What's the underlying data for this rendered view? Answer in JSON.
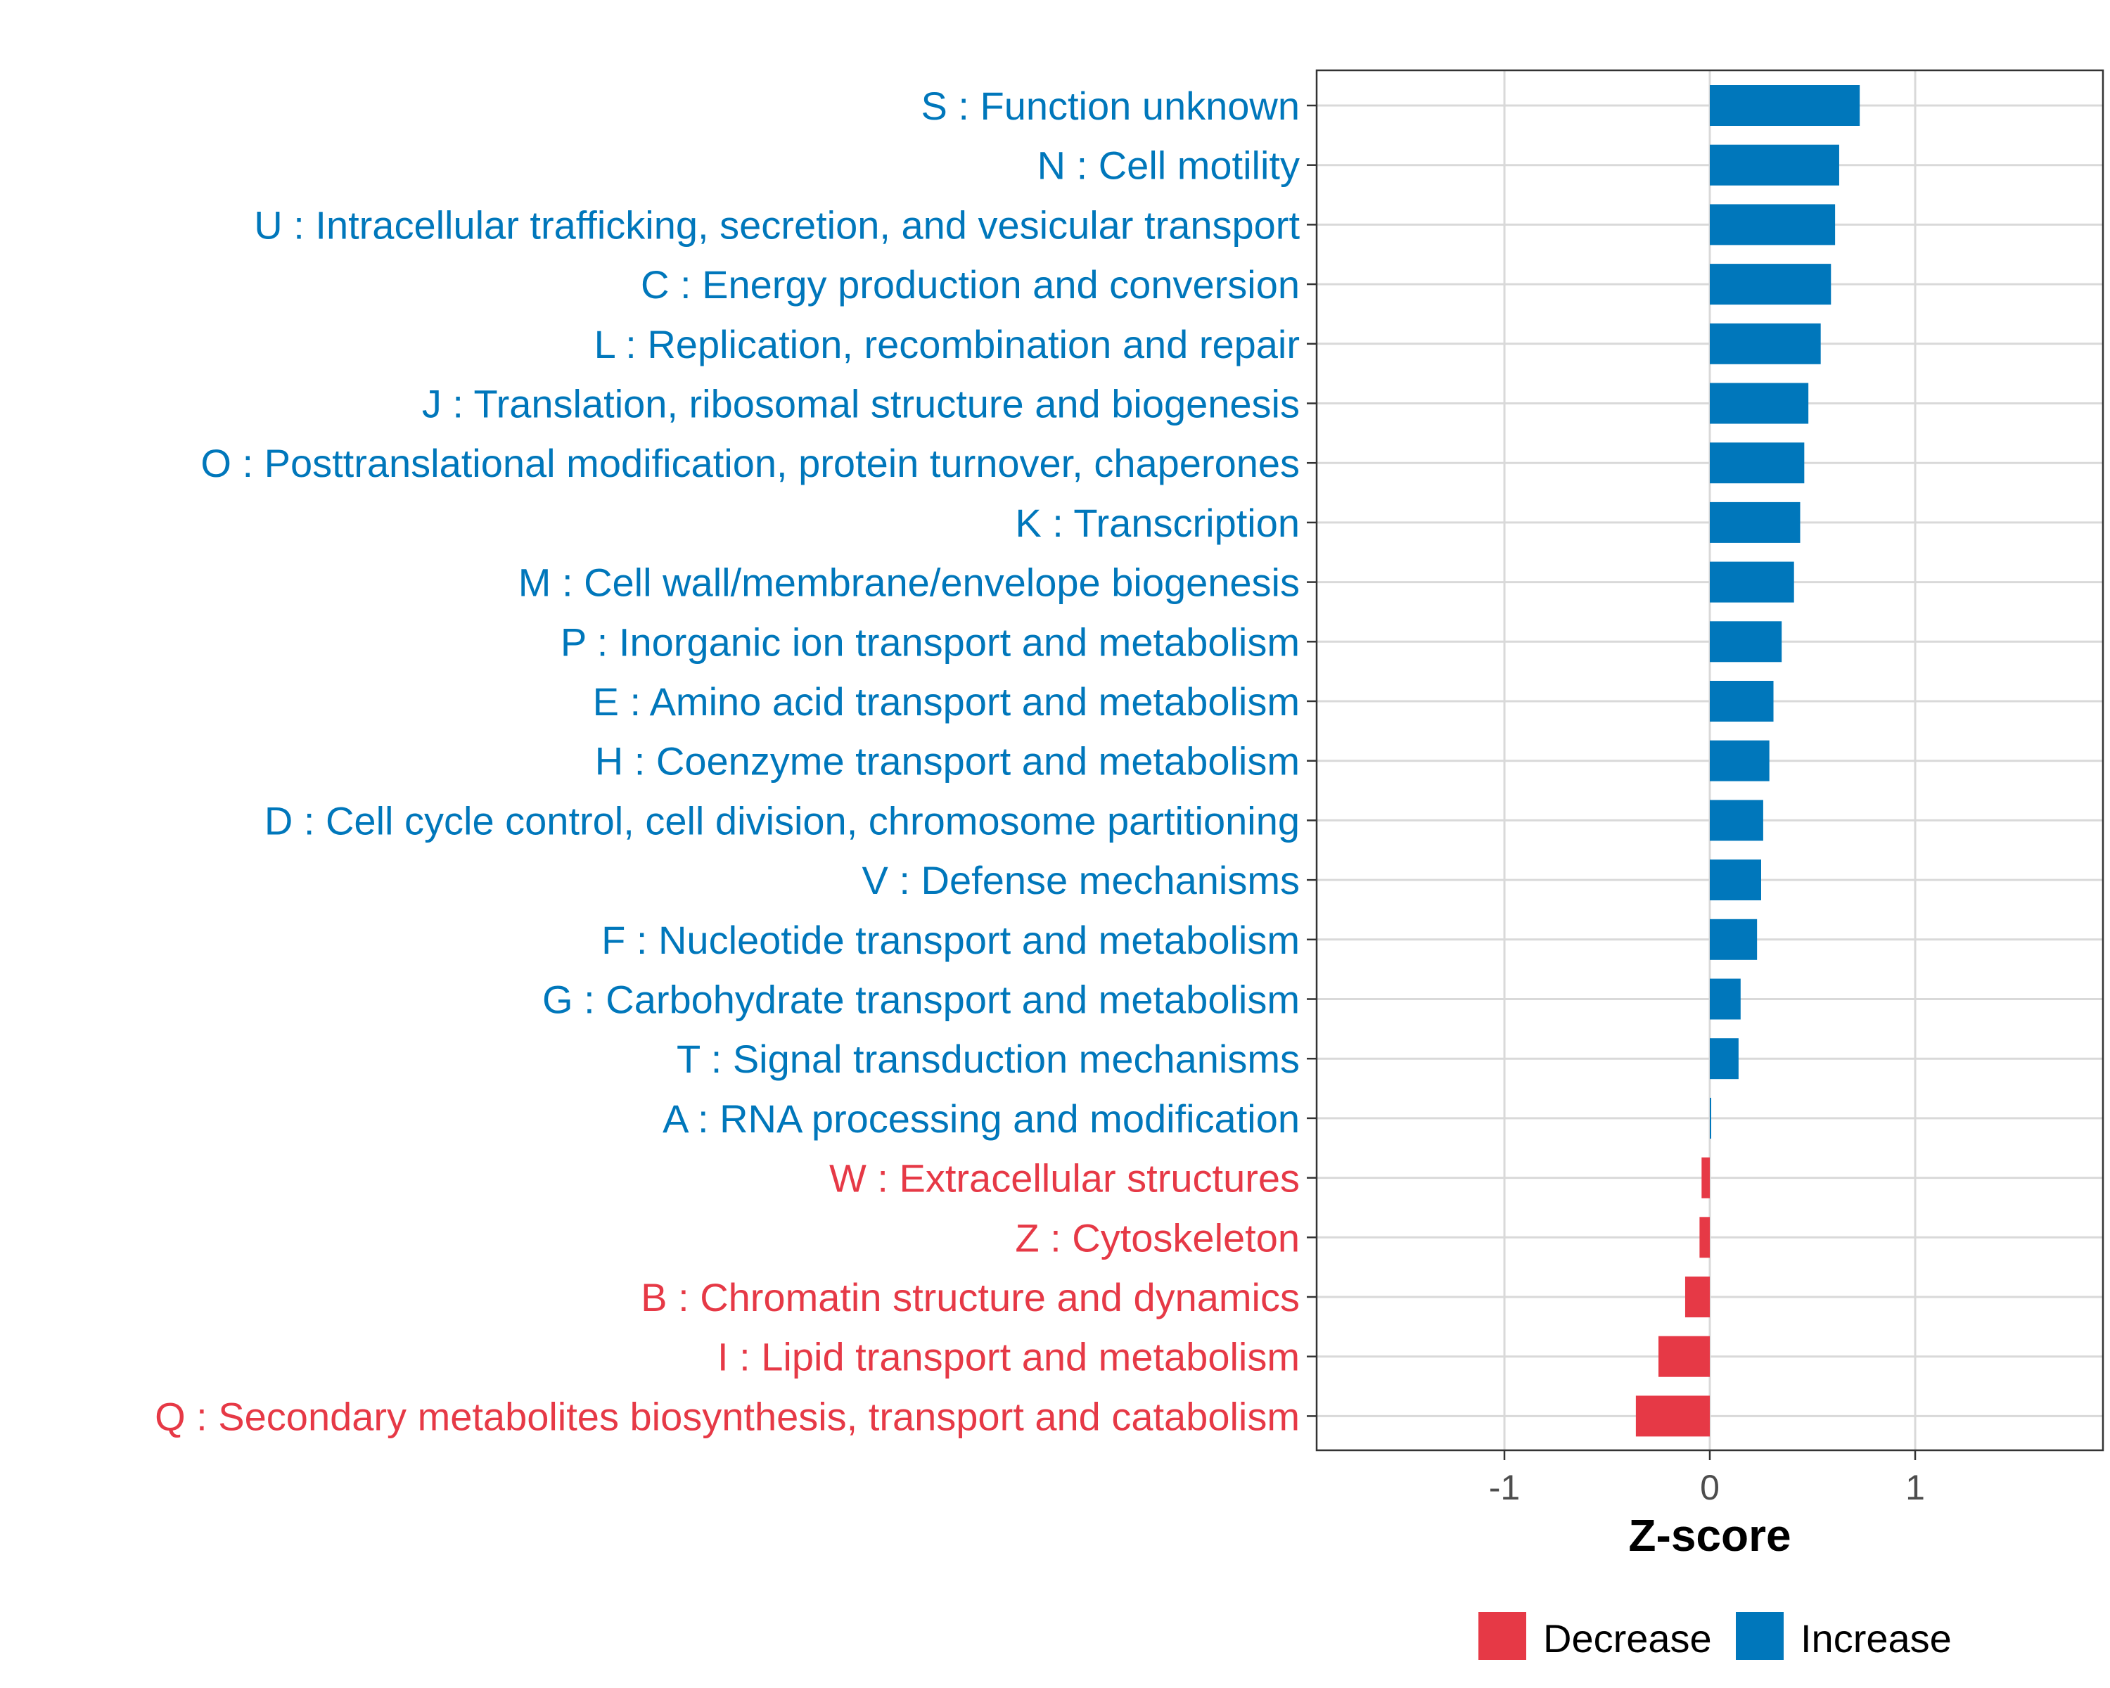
{
  "chart_data": {
    "type": "bar",
    "orientation": "horizontal",
    "xlabel": "Z-score",
    "xlim": [
      -1.9,
      1.9
    ],
    "xticks": [
      -1,
      0,
      1
    ],
    "xtick_labels": [
      "-1",
      "0",
      "1"
    ],
    "grid": true,
    "colors": {
      "Increase": "#0077BB",
      "Decrease": "#E63946"
    },
    "legend": {
      "position": "bottom",
      "entries": [
        "Decrease",
        "Increase"
      ]
    },
    "categories": [
      "S : Function unknown",
      "N : Cell motility",
      "U : Intracellular trafficking, secretion, and vesicular transport",
      "C : Energy production and conversion",
      "L : Replication, recombination and repair",
      "J : Translation, ribosomal structure and biogenesis",
      "O : Posttranslational modification, protein turnover, chaperones",
      "K : Transcription",
      "M : Cell wall/membrane/envelope biogenesis",
      "P : Inorganic ion transport and metabolism",
      "E : Amino acid transport and metabolism",
      "H : Coenzyme transport and metabolism",
      "D : Cell cycle control, cell division, chromosome partitioning",
      "V : Defense mechanisms",
      "F : Nucleotide transport and metabolism",
      "G : Carbohydrate transport and metabolism",
      "T : Signal transduction mechanisms",
      "A : RNA processing and modification",
      "W : Extracellular structures",
      "Z : Cytoskeleton",
      "B : Chromatin structure and dynamics",
      "I : Lipid transport and metabolism",
      "Q : Secondary metabolites biosynthesis, transport and catabolism"
    ],
    "values": [
      0.73,
      0.63,
      0.61,
      0.59,
      0.54,
      0.48,
      0.46,
      0.44,
      0.41,
      0.35,
      0.31,
      0.29,
      0.26,
      0.25,
      0.23,
      0.15,
      0.14,
      0.005,
      -0.04,
      -0.05,
      -0.12,
      -0.25,
      -0.36
    ],
    "groups": [
      "Increase",
      "Increase",
      "Increase",
      "Increase",
      "Increase",
      "Increase",
      "Increase",
      "Increase",
      "Increase",
      "Increase",
      "Increase",
      "Increase",
      "Increase",
      "Increase",
      "Increase",
      "Increase",
      "Increase",
      "Increase",
      "Decrease",
      "Decrease",
      "Decrease",
      "Decrease",
      "Decrease"
    ]
  }
}
